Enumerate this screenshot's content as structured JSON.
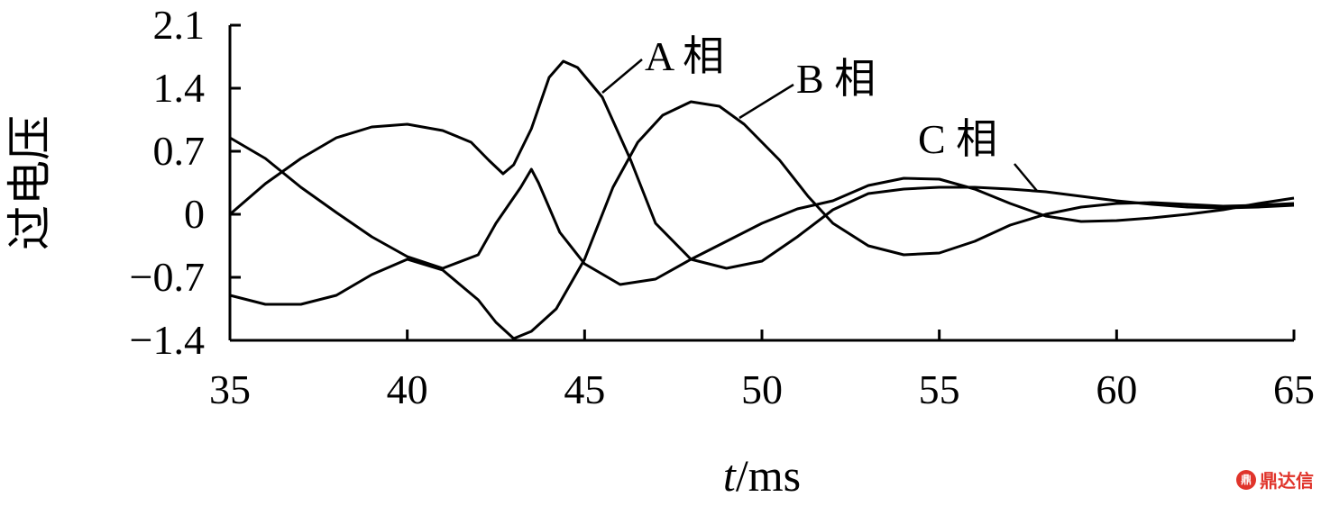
{
  "chart_data": {
    "type": "line",
    "xlabel_italic": "t",
    "xlabel_rest": "/ms",
    "ylabel": "过电压",
    "xlim": [
      35,
      65
    ],
    "ylim": [
      -1.4,
      2.1
    ],
    "x_ticks": [
      "35",
      "40",
      "45",
      "50",
      "55",
      "60",
      "65"
    ],
    "y_ticks": [
      "2.1",
      "1.4",
      "0.7",
      "0",
      "−0.7",
      "−1.4"
    ],
    "series": [
      {
        "name": "A 相",
        "points": [
          [
            35,
            0
          ],
          [
            36,
            0.34
          ],
          [
            37,
            0.62
          ],
          [
            38,
            0.85
          ],
          [
            39,
            0.97
          ],
          [
            40,
            1.0
          ],
          [
            41,
            0.93
          ],
          [
            41.8,
            0.8
          ],
          [
            42.3,
            0.6
          ],
          [
            42.7,
            0.45
          ],
          [
            43.0,
            0.55
          ],
          [
            43.5,
            0.95
          ],
          [
            44.0,
            1.52
          ],
          [
            44.4,
            1.7
          ],
          [
            44.8,
            1.63
          ],
          [
            45.5,
            1.3
          ],
          [
            46.3,
            0.6
          ],
          [
            47,
            -0.1
          ],
          [
            48,
            -0.5
          ],
          [
            49,
            -0.6
          ],
          [
            50,
            -0.52
          ],
          [
            51,
            -0.25
          ],
          [
            52,
            0.05
          ],
          [
            53,
            0.23
          ],
          [
            54,
            0.28
          ],
          [
            55,
            0.3
          ],
          [
            56,
            0.3
          ],
          [
            57,
            0.28
          ],
          [
            58,
            0.25
          ],
          [
            59,
            0.2
          ],
          [
            60,
            0.15
          ],
          [
            61,
            0.11
          ],
          [
            62,
            0.08
          ],
          [
            63,
            0.07
          ],
          [
            64,
            0.08
          ],
          [
            65,
            0.1
          ]
        ]
      },
      {
        "name": "B 相",
        "points": [
          [
            35,
            -0.9
          ],
          [
            36,
            -1.0
          ],
          [
            37,
            -1.0
          ],
          [
            38,
            -0.9
          ],
          [
            39,
            -0.67
          ],
          [
            40,
            -0.5
          ],
          [
            41,
            -0.62
          ],
          [
            42,
            -0.95
          ],
          [
            42.5,
            -1.2
          ],
          [
            43,
            -1.38
          ],
          [
            43.5,
            -1.3
          ],
          [
            44.2,
            -1.05
          ],
          [
            45,
            -0.5
          ],
          [
            45.8,
            0.3
          ],
          [
            46.5,
            0.8
          ],
          [
            47.2,
            1.1
          ],
          [
            48,
            1.25
          ],
          [
            48.8,
            1.2
          ],
          [
            49.5,
            1.0
          ],
          [
            50.5,
            0.6
          ],
          [
            51.3,
            0.2
          ],
          [
            52,
            -0.1
          ],
          [
            53,
            -0.35
          ],
          [
            54,
            -0.45
          ],
          [
            55,
            -0.43
          ],
          [
            56,
            -0.3
          ],
          [
            57,
            -0.12
          ],
          [
            58,
            0.0
          ],
          [
            59,
            0.08
          ],
          [
            60,
            0.12
          ],
          [
            61,
            0.13
          ],
          [
            62,
            0.11
          ],
          [
            63,
            0.09
          ],
          [
            64,
            0.1
          ],
          [
            65,
            0.12
          ]
        ]
      },
      {
        "name": "C 相",
        "points": [
          [
            35,
            0.85
          ],
          [
            36,
            0.62
          ],
          [
            37,
            0.3
          ],
          [
            38,
            0.02
          ],
          [
            39,
            -0.25
          ],
          [
            40,
            -0.47
          ],
          [
            41,
            -0.6
          ],
          [
            42,
            -0.45
          ],
          [
            42.5,
            -0.1
          ],
          [
            43.2,
            0.3
          ],
          [
            43.5,
            0.5
          ],
          [
            43.7,
            0.35
          ],
          [
            44.3,
            -0.2
          ],
          [
            45,
            -0.55
          ],
          [
            46,
            -0.78
          ],
          [
            47,
            -0.72
          ],
          [
            48,
            -0.5
          ],
          [
            49,
            -0.3
          ],
          [
            50,
            -0.1
          ],
          [
            51,
            0.06
          ],
          [
            52,
            0.15
          ],
          [
            53,
            0.32
          ],
          [
            54,
            0.4
          ],
          [
            55,
            0.39
          ],
          [
            56,
            0.28
          ],
          [
            57,
            0.12
          ],
          [
            58,
            -0.02
          ],
          [
            59,
            -0.08
          ],
          [
            60,
            -0.07
          ],
          [
            61,
            -0.04
          ],
          [
            62,
            0.0
          ],
          [
            63,
            0.05
          ],
          [
            64,
            0.12
          ],
          [
            65,
            0.18
          ]
        ]
      }
    ]
  },
  "watermark": {
    "icon": "鼎",
    "text": "鼎达信"
  }
}
